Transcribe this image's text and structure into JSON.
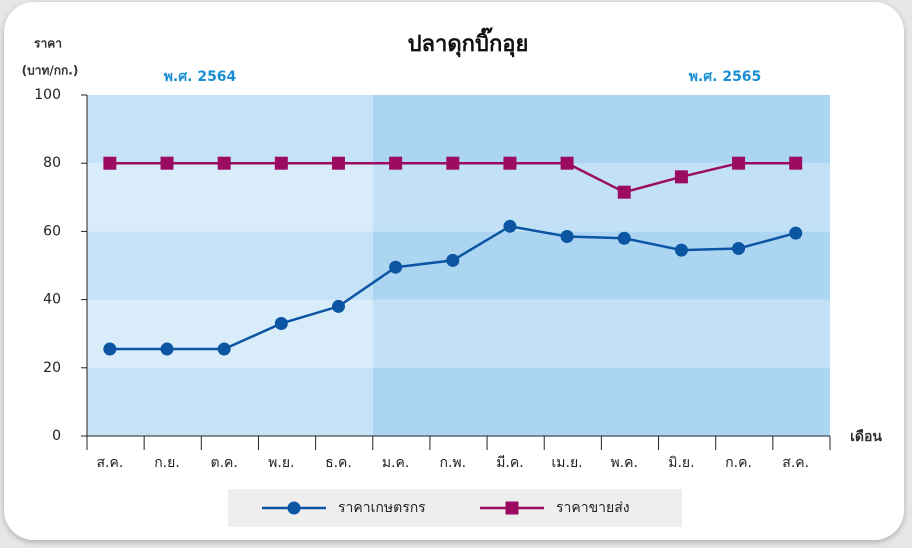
{
  "chart_data": {
    "type": "line",
    "title": "ปลาดุกบิ๊กอุย",
    "ylabel": [
      "ราคา",
      "(บาท/กก.)"
    ],
    "xlabel": "เดือน",
    "categories": [
      "ส.ค.",
      "ก.ย.",
      "ต.ค.",
      "พ.ย.",
      "ธ.ค.",
      "ม.ค.",
      "ก.พ.",
      "มี.ค.",
      "เม.ย.",
      "พ.ค.",
      "มิ.ย.",
      "ก.ค.",
      "ส.ค."
    ],
    "series": [
      {
        "name": "ราคาเกษตรกร",
        "color": "#0b55a3",
        "marker": "circle",
        "values": [
          25.5,
          25.5,
          25.5,
          33,
          38,
          49.5,
          51.5,
          61.5,
          58.5,
          58,
          54.5,
          55,
          59.5
        ]
      },
      {
        "name": "ราคาขายส่ง",
        "color": "#9c0b62",
        "marker": "square",
        "values": [
          80,
          80,
          80,
          80,
          80,
          80,
          80,
          80,
          80,
          71.5,
          76,
          80,
          80
        ]
      }
    ],
    "regions": [
      {
        "label": "พ.ศ. 2564",
        "from": 0,
        "to": 4,
        "colors": [
          "#c6e2f6",
          "#d8ecfa"
        ]
      },
      {
        "label": "พ.ศ. 2565",
        "from": 5,
        "to": 12,
        "colors": [
          "#abd5f1",
          "#c2e1f6"
        ]
      }
    ],
    "ylim": [
      0,
      100
    ],
    "yticks": [
      0,
      20,
      40,
      60,
      80,
      100
    ]
  }
}
